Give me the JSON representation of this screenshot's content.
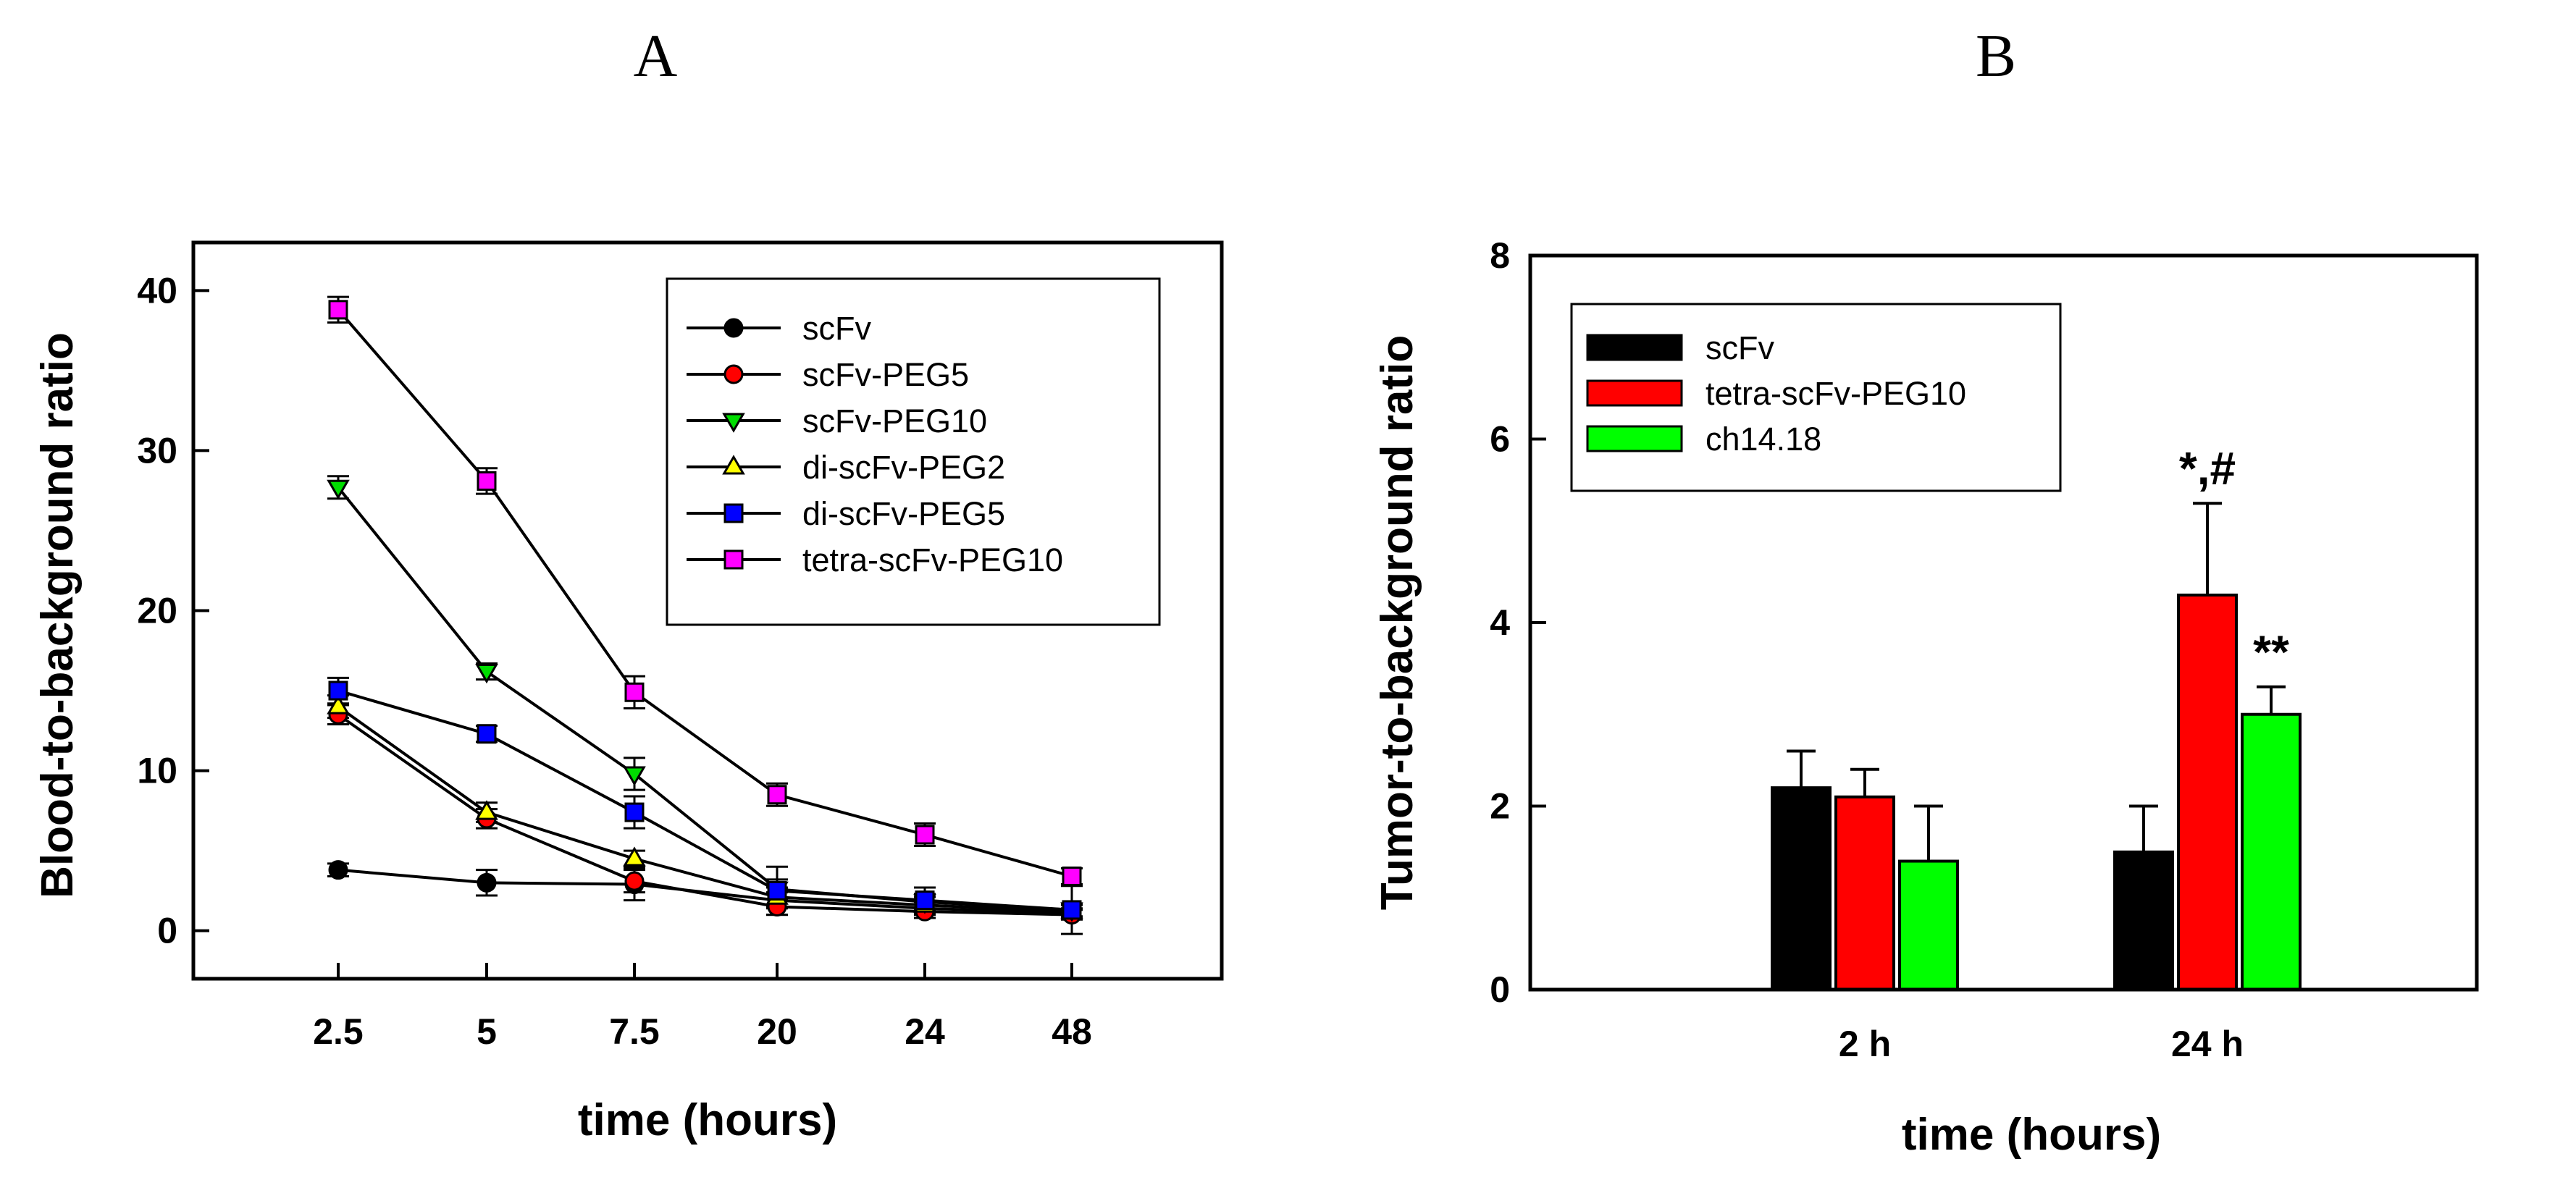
{
  "chart_data": [
    {
      "panel": "A",
      "type": "line",
      "xlabel": "time (hours)",
      "ylabel": "Blood-to-background ratio",
      "categories": [
        "2.5",
        "5",
        "7.5",
        "20",
        "24",
        "48"
      ],
      "ylim": [
        -3,
        43
      ],
      "yticks": [
        0,
        10,
        20,
        30,
        40
      ],
      "legend_position": "top-right",
      "series": [
        {
          "name": "scFv",
          "color": "#000000",
          "marker": "circle",
          "values": [
            3.8,
            3.0,
            2.9,
            1.9,
            1.4,
            1.1
          ],
          "errors": [
            0.4,
            0.8,
            1.0,
            0.5,
            0.4,
            0.3
          ]
        },
        {
          "name": "scFv-PEG5",
          "color": "#ff0000",
          "marker": "circle",
          "values": [
            13.5,
            7.0,
            3.1,
            1.5,
            1.2,
            1.0
          ],
          "errors": [
            0.6,
            0.6,
            0.7,
            0.5,
            0.4,
            0.3
          ]
        },
        {
          "name": "scFv-PEG10",
          "color": "#00dd00",
          "marker": "triangle-down",
          "values": [
            27.7,
            16.2,
            9.8,
            2.6,
            1.8,
            1.3
          ],
          "errors": [
            0.7,
            0.5,
            1.0,
            0.6,
            0.5,
            0.4
          ]
        },
        {
          "name": "di-scFv-PEG2",
          "color": "#ffff00",
          "marker": "triangle-up",
          "values": [
            14.0,
            7.4,
            4.5,
            2.1,
            1.6,
            1.2
          ],
          "errors": [
            0.7,
            0.6,
            0.5,
            0.6,
            0.5,
            0.4
          ]
        },
        {
          "name": "di-scFv-PEG5",
          "color": "#0000ff",
          "marker": "square",
          "values": [
            15.0,
            12.3,
            7.4,
            2.5,
            1.9,
            1.3
          ],
          "errors": [
            0.8,
            0.5,
            1.0,
            1.5,
            0.8,
            1.5
          ]
        },
        {
          "name": "tetra-scFv-PEG10",
          "color": "#ff00ff",
          "marker": "square",
          "values": [
            38.8,
            28.1,
            14.9,
            8.5,
            6.0,
            3.4
          ],
          "errors": [
            0.8,
            0.8,
            1.0,
            0.7,
            0.7,
            0.5
          ]
        }
      ]
    },
    {
      "panel": "B",
      "type": "bar",
      "xlabel": "time (hours)",
      "ylabel": "Tumor-to-background ratio",
      "categories": [
        "2 h",
        "24 h"
      ],
      "ylim": [
        0,
        8
      ],
      "yticks": [
        0,
        2,
        4,
        6,
        8
      ],
      "legend_position": "top-left",
      "series": [
        {
          "name": "scFv",
          "color": "#000000",
          "values": [
            2.2,
            1.5
          ],
          "errors": [
            0.4,
            0.5
          ]
        },
        {
          "name": "tetra-scFv-PEG10",
          "color": "#ff0000",
          "values": [
            2.1,
            4.3
          ],
          "errors": [
            0.3,
            1.0
          ]
        },
        {
          "name": "ch14.18",
          "color": "#00ff00",
          "values": [
            1.4,
            3.0
          ],
          "errors": [
            0.6,
            0.3
          ]
        }
      ],
      "annotations": [
        {
          "text": "*,#",
          "series": 1,
          "category": 1
        },
        {
          "text": "**",
          "series": 2,
          "category": 1
        }
      ]
    }
  ]
}
